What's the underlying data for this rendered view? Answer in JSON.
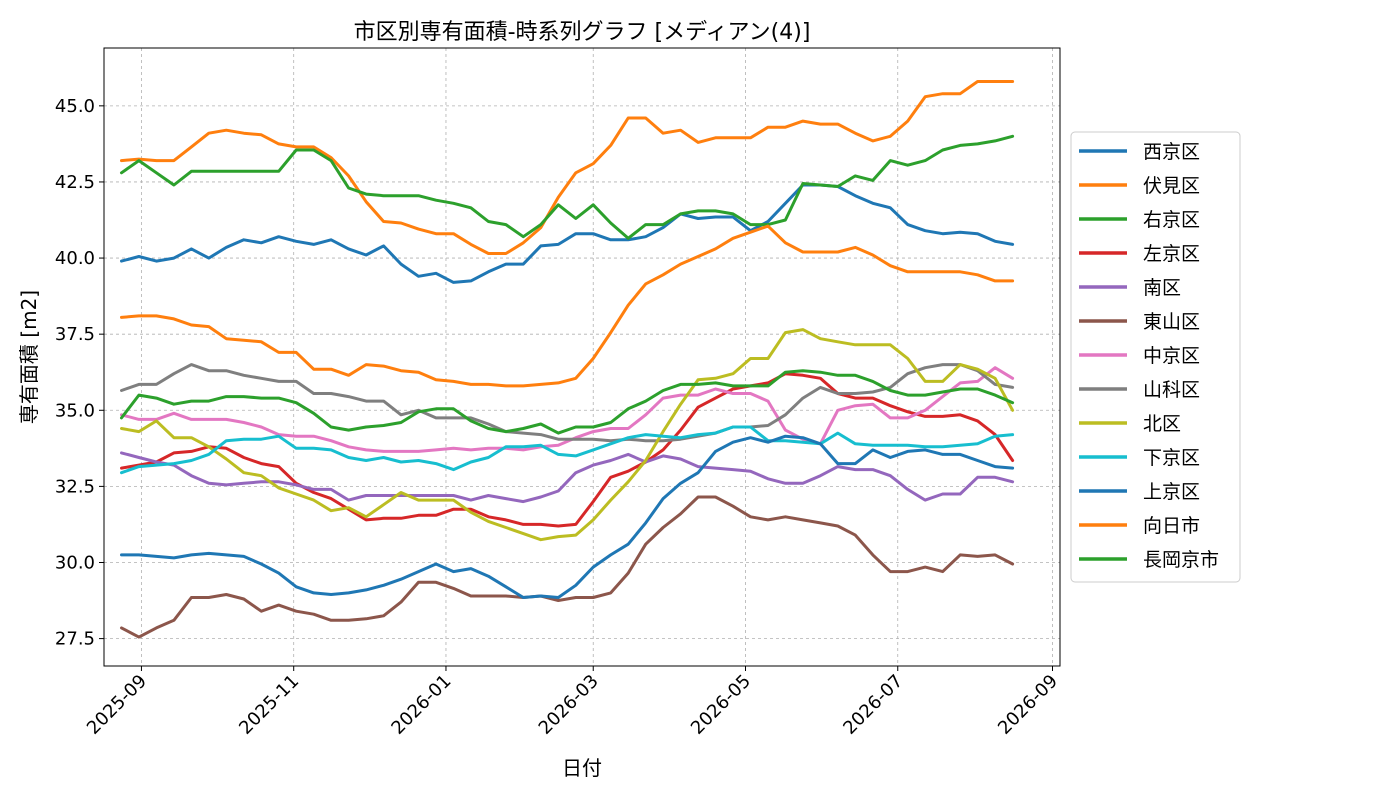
{
  "chart_data": {
    "type": "line",
    "title": "市区別専有面積-時系列グラフ [メディアン(4)]",
    "xlabel": "日付",
    "ylabel": "専有面積 [m2]",
    "xlim": [
      "2025-08-17",
      "2026-09-04"
    ],
    "ylim": [
      26.6,
      46.9
    ],
    "yticks": [
      27.5,
      30.0,
      32.5,
      35.0,
      37.5,
      40.0,
      42.5,
      45.0
    ],
    "xticks": [
      "2025-09",
      "2025-11",
      "2026-01",
      "2026-03",
      "2026-05",
      "2026-07",
      "2026-09"
    ],
    "grid": true,
    "legend_position": "right",
    "x": [
      "2025-08-24",
      "2025-08-31",
      "2025-09-07",
      "2025-09-14",
      "2025-09-21",
      "2025-09-28",
      "2025-10-05",
      "2025-10-12",
      "2025-10-19",
      "2025-10-26",
      "2025-11-02",
      "2025-11-09",
      "2025-11-16",
      "2025-11-23",
      "2025-11-30",
      "2025-12-07",
      "2025-12-14",
      "2025-12-21",
      "2025-12-28",
      "2026-01-04",
      "2026-01-11",
      "2026-01-18",
      "2026-01-25",
      "2026-02-01",
      "2026-02-08",
      "2026-02-15",
      "2026-02-22",
      "2026-03-01",
      "2026-03-08",
      "2026-03-15",
      "2026-03-22",
      "2026-03-29",
      "2026-04-05",
      "2026-04-12",
      "2026-04-19",
      "2026-04-26",
      "2026-05-03",
      "2026-05-10",
      "2026-05-17",
      "2026-05-24",
      "2026-05-31",
      "2026-06-07",
      "2026-06-14",
      "2026-06-21",
      "2026-06-28",
      "2026-07-05",
      "2026-07-12",
      "2026-07-19",
      "2026-07-26",
      "2026-08-02",
      "2026-08-09",
      "2026-08-16"
    ],
    "series": [
      {
        "name": "西京区",
        "color": "#1f77b4",
        "values": [
          39.9,
          40.05,
          39.9,
          40.0,
          40.3,
          40.0,
          40.35,
          40.6,
          40.5,
          40.7,
          40.55,
          40.45,
          40.6,
          40.3,
          40.1,
          40.4,
          39.8,
          39.4,
          39.5,
          39.2,
          39.25,
          39.55,
          39.8,
          39.8,
          40.4,
          40.45,
          40.8,
          40.8,
          40.6,
          40.6,
          40.7,
          41.0,
          41.45,
          41.3,
          41.35,
          41.35,
          40.9,
          41.2,
          41.8,
          42.4,
          42.4,
          42.35,
          42.05,
          41.8,
          41.65,
          41.1,
          40.9,
          40.8,
          40.85,
          40.8,
          40.55,
          40.45
        ]
      },
      {
        "name": "伏見区",
        "color": "#ff7f0e",
        "values": [
          43.2,
          43.25,
          43.2,
          43.2,
          43.65,
          44.1,
          44.2,
          44.1,
          44.05,
          43.75,
          43.65,
          43.65,
          43.3,
          42.7,
          41.85,
          41.2,
          41.15,
          40.95,
          40.8,
          40.8,
          40.45,
          40.15,
          40.15,
          40.5,
          41.0,
          42.0,
          42.8,
          43.1,
          43.7,
          44.6,
          44.6,
          44.1,
          44.2,
          43.8,
          43.95,
          43.95,
          43.95,
          44.3,
          44.3,
          44.5,
          44.4,
          44.4,
          44.1,
          43.85,
          44.0,
          44.5,
          45.3,
          45.4,
          45.4,
          45.8,
          45.8,
          45.8
        ]
      },
      {
        "name": "右京区",
        "color": "#2ca02c",
        "values": [
          42.8,
          43.2,
          42.8,
          42.4,
          42.85,
          42.85,
          42.85,
          42.85,
          42.85,
          42.85,
          43.55,
          43.55,
          43.2,
          42.3,
          42.1,
          42.05,
          42.05,
          42.05,
          41.9,
          41.8,
          41.65,
          41.2,
          41.1,
          40.7,
          41.1,
          41.75,
          41.3,
          41.75,
          41.15,
          40.65,
          41.1,
          41.1,
          41.45,
          41.55,
          41.55,
          41.45,
          41.1,
          41.1,
          41.25,
          42.45,
          42.4,
          42.35,
          42.7,
          42.55,
          43.2,
          43.05,
          43.2,
          43.55,
          43.7,
          43.75,
          43.85,
          44.0
        ]
      },
      {
        "name": "左京区",
        "color": "#d62728",
        "values": [
          33.1,
          33.2,
          33.3,
          33.6,
          33.65,
          33.8,
          33.75,
          33.45,
          33.25,
          33.15,
          32.6,
          32.3,
          32.1,
          31.75,
          31.4,
          31.45,
          31.45,
          31.55,
          31.55,
          31.75,
          31.75,
          31.5,
          31.4,
          31.25,
          31.25,
          31.2,
          31.25,
          32.0,
          32.8,
          33.0,
          33.3,
          33.7,
          34.35,
          35.1,
          35.4,
          35.7,
          35.8,
          35.9,
          36.2,
          36.15,
          36.05,
          35.55,
          35.4,
          35.4,
          35.15,
          34.95,
          34.8,
          34.8,
          34.85,
          34.65,
          34.2,
          33.35
        ]
      },
      {
        "name": "南区",
        "color": "#9467bd",
        "values": [
          33.6,
          33.45,
          33.3,
          33.2,
          32.85,
          32.6,
          32.55,
          32.6,
          32.65,
          32.65,
          32.55,
          32.4,
          32.4,
          32.05,
          32.2,
          32.2,
          32.2,
          32.2,
          32.2,
          32.2,
          32.05,
          32.2,
          32.1,
          32.0,
          32.15,
          32.35,
          32.95,
          33.2,
          33.35,
          33.55,
          33.3,
          33.5,
          33.4,
          33.15,
          33.1,
          33.05,
          33.0,
          32.75,
          32.6,
          32.6,
          32.85,
          33.15,
          33.05,
          33.05,
          32.85,
          32.4,
          32.05,
          32.25,
          32.25,
          32.8,
          32.8,
          32.65
        ]
      },
      {
        "name": "東山区",
        "color": "#8c564b",
        "values": [
          27.85,
          27.55,
          27.85,
          28.1,
          28.85,
          28.85,
          28.95,
          28.8,
          28.4,
          28.6,
          28.4,
          28.3,
          28.1,
          28.1,
          28.15,
          28.25,
          28.7,
          29.35,
          29.35,
          29.15,
          28.9,
          28.9,
          28.9,
          28.85,
          28.9,
          28.75,
          28.85,
          28.85,
          29.0,
          29.65,
          30.6,
          31.15,
          31.6,
          32.15,
          32.15,
          31.85,
          31.5,
          31.4,
          31.5,
          31.4,
          31.3,
          31.2,
          30.9,
          30.25,
          29.7,
          29.7,
          29.85,
          29.7,
          30.25,
          30.2,
          30.25,
          29.95
        ]
      },
      {
        "name": "中京区",
        "color": "#e377c2",
        "values": [
          34.85,
          34.7,
          34.7,
          34.9,
          34.7,
          34.7,
          34.7,
          34.6,
          34.45,
          34.2,
          34.15,
          34.15,
          34.0,
          33.8,
          33.7,
          33.65,
          33.65,
          33.65,
          33.7,
          33.75,
          33.7,
          33.75,
          33.75,
          33.7,
          33.8,
          33.85,
          34.1,
          34.3,
          34.4,
          34.4,
          34.85,
          35.4,
          35.5,
          35.5,
          35.7,
          35.55,
          35.55,
          35.3,
          34.35,
          34.05,
          33.9,
          35.0,
          35.15,
          35.2,
          34.75,
          34.75,
          35.0,
          35.45,
          35.9,
          35.95,
          36.4,
          36.05
        ]
      },
      {
        "name": "山科区",
        "color": "#7f7f7f",
        "values": [
          35.65,
          35.85,
          35.85,
          36.2,
          36.5,
          36.3,
          36.3,
          36.15,
          36.05,
          35.95,
          35.95,
          35.55,
          35.55,
          35.45,
          35.3,
          35.3,
          34.85,
          35.0,
          34.75,
          34.75,
          34.75,
          34.55,
          34.3,
          34.25,
          34.2,
          34.05,
          34.05,
          34.05,
          34.0,
          34.05,
          34.0,
          34.0,
          34.05,
          34.15,
          34.25,
          34.45,
          34.45,
          34.5,
          34.85,
          35.4,
          35.75,
          35.55,
          35.55,
          35.6,
          35.75,
          36.2,
          36.4,
          36.5,
          36.5,
          36.3,
          35.85,
          35.75
        ]
      },
      {
        "name": "北区",
        "color": "#bcbd22",
        "values": [
          34.4,
          34.3,
          34.65,
          34.1,
          34.1,
          33.8,
          33.4,
          32.95,
          32.85,
          32.45,
          32.25,
          32.05,
          31.7,
          31.8,
          31.5,
          31.9,
          32.3,
          32.05,
          32.05,
          32.05,
          31.65,
          31.35,
          31.15,
          30.95,
          30.75,
          30.85,
          30.9,
          31.4,
          32.05,
          32.65,
          33.35,
          34.3,
          35.2,
          36.0,
          36.05,
          36.2,
          36.7,
          36.7,
          37.55,
          37.65,
          37.35,
          37.25,
          37.15,
          37.15,
          37.15,
          36.7,
          35.95,
          35.95,
          36.5,
          36.35,
          36.05,
          35.0
        ]
      },
      {
        "name": "下京区",
        "color": "#17becf",
        "values": [
          32.95,
          33.15,
          33.2,
          33.25,
          33.35,
          33.55,
          34.0,
          34.05,
          34.05,
          34.15,
          33.75,
          33.75,
          33.7,
          33.45,
          33.35,
          33.45,
          33.3,
          33.35,
          33.25,
          33.05,
          33.3,
          33.45,
          33.8,
          33.8,
          33.85,
          33.55,
          33.5,
          33.7,
          33.9,
          34.1,
          34.2,
          34.15,
          34.1,
          34.2,
          34.25,
          34.45,
          34.45,
          34.0,
          34.0,
          33.95,
          33.9,
          34.25,
          33.9,
          33.85,
          33.85,
          33.85,
          33.8,
          33.8,
          33.85,
          33.9,
          34.15,
          34.2
        ]
      },
      {
        "name": "上京区",
        "color": "#1f77b4",
        "values": [
          30.25,
          30.25,
          30.2,
          30.15,
          30.25,
          30.3,
          30.25,
          30.2,
          29.95,
          29.65,
          29.2,
          29.0,
          28.95,
          29.0,
          29.1,
          29.25,
          29.45,
          29.7,
          29.95,
          29.7,
          29.8,
          29.55,
          29.2,
          28.85,
          28.9,
          28.85,
          29.25,
          29.85,
          30.25,
          30.6,
          31.3,
          32.1,
          32.6,
          32.95,
          33.65,
          33.95,
          34.1,
          33.95,
          34.15,
          34.1,
          33.9,
          33.25,
          33.25,
          33.7,
          33.45,
          33.65,
          33.7,
          33.55,
          33.55,
          33.35,
          33.15,
          33.1
        ]
      },
      {
        "name": "向日市",
        "color": "#ff7f0e",
        "values": [
          38.05,
          38.1,
          38.1,
          38.0,
          37.8,
          37.75,
          37.35,
          37.3,
          37.25,
          36.9,
          36.9,
          36.35,
          36.35,
          36.15,
          36.5,
          36.45,
          36.3,
          36.25,
          36.0,
          35.95,
          35.85,
          35.85,
          35.8,
          35.8,
          35.85,
          35.9,
          36.05,
          36.7,
          37.55,
          38.45,
          39.15,
          39.45,
          39.8,
          40.05,
          40.3,
          40.65,
          40.85,
          41.05,
          40.5,
          40.2,
          40.2,
          40.2,
          40.35,
          40.1,
          39.75,
          39.55,
          39.55,
          39.55,
          39.55,
          39.45,
          39.25,
          39.25
        ]
      },
      {
        "name": "長岡京市",
        "color": "#2ca02c",
        "values": [
          34.75,
          35.5,
          35.4,
          35.2,
          35.3,
          35.3,
          35.45,
          35.45,
          35.4,
          35.4,
          35.25,
          34.9,
          34.45,
          34.35,
          34.45,
          34.5,
          34.6,
          34.95,
          35.05,
          35.05,
          34.65,
          34.4,
          34.3,
          34.4,
          34.55,
          34.25,
          34.45,
          34.45,
          34.6,
          35.05,
          35.3,
          35.65,
          35.85,
          35.85,
          35.9,
          35.8,
          35.8,
          35.8,
          36.25,
          36.3,
          36.25,
          36.15,
          36.15,
          35.95,
          35.65,
          35.5,
          35.5,
          35.6,
          35.7,
          35.7,
          35.5,
          35.25
        ]
      }
    ]
  }
}
